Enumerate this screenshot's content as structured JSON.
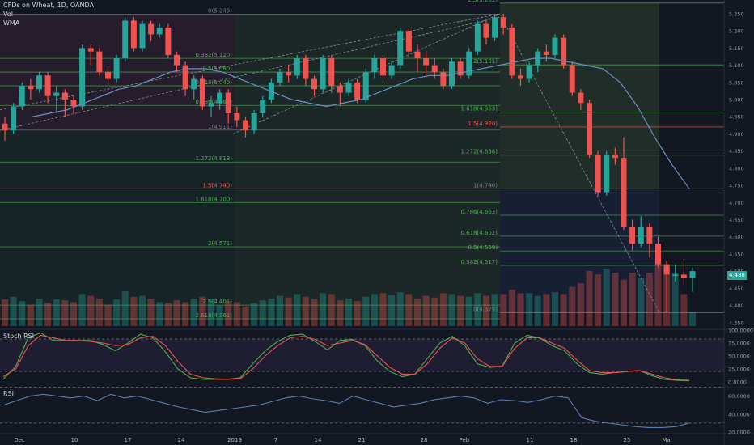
{
  "header": {
    "title": "CFDs on Wheat, 1D, OANDA",
    "vol_label": "Vol",
    "wma_label": "WMA"
  },
  "price_badge": "4.488",
  "colors": {
    "up": "#26a69a",
    "down": "#ef5350",
    "wma": "#6a8fc0",
    "background": "#131722"
  },
  "panes": {
    "stoch": {
      "title": "Stoch RSI",
      "ticks": [
        "100.0000",
        "75.0000",
        "50.0000",
        "25.0000",
        "0.0000"
      ]
    },
    "rsi": {
      "title": "RSI",
      "ticks": [
        "60.0000",
        "40.0000",
        "20.0000"
      ]
    }
  },
  "chart_data": {
    "type": "candlestick",
    "price_axis_ticks": [
      "5.250",
      "5.200",
      "5.150",
      "5.100",
      "5.050",
      "5.000",
      "4.950",
      "4.900",
      "4.850",
      "4.800",
      "4.750",
      "4.700",
      "4.650",
      "4.600",
      "4.550",
      "4.500",
      "4.450",
      "4.400",
      "4.350"
    ],
    "ylim": [
      4.34,
      5.29
    ],
    "date_labels": [
      "Dec",
      "10",
      "17",
      "24",
      "2019",
      "7",
      "14",
      "21",
      "28",
      "Feb",
      "11",
      "18",
      "25",
      "Mar"
    ],
    "fib_left": {
      "levels": [
        {
          "label": "0(5.249)",
          "value": 5.249
        },
        {
          "label": "0.382(5.120)",
          "value": 5.12
        },
        {
          "label": "0.5(5.080)",
          "value": 5.08
        },
        {
          "label": "0.618(5.040)",
          "value": 5.04
        },
        {
          "label": "0.786(4.983)",
          "value": 4.983
        },
        {
          "label": "1(4.911)",
          "value": 4.911
        },
        {
          "label": "1.272(4.818)",
          "value": 4.818
        },
        {
          "label": "1.5(4.740)",
          "value": 4.74
        },
        {
          "label": "1.618(4.700)",
          "value": 4.7
        },
        {
          "label": "2(4.571)",
          "value": 4.571
        },
        {
          "label": "2.5(4.401)",
          "value": 4.401
        },
        {
          "label": "2.618(4.361)",
          "value": 4.361
        }
      ]
    },
    "fib_right": {
      "levels": [
        {
          "label": "2.5(5.281)",
          "value": 5.281
        },
        {
          "label": "2(5.101)",
          "value": 5.101
        },
        {
          "label": "1.618(4.963)",
          "value": 4.963
        },
        {
          "label": "1.5(4.920)",
          "value": 4.92
        },
        {
          "label": "1.272(4.838)",
          "value": 4.838
        },
        {
          "label": "1(4.740)",
          "value": 4.74
        },
        {
          "label": "0.786(4.663)",
          "value": 4.663
        },
        {
          "label": "0.618(4.602)",
          "value": 4.602
        },
        {
          "label": "0.5(4.559)",
          "value": 4.559
        },
        {
          "label": "0.382(4.517)",
          "value": 4.517
        },
        {
          "label": "0(4.379)",
          "value": 4.379
        }
      ]
    },
    "candles": [
      [
        4.93,
        4.91,
        4.95,
        4.88
      ],
      [
        4.91,
        4.98,
        4.99,
        4.9
      ],
      [
        4.98,
        5.04,
        5.05,
        4.97
      ],
      [
        5.04,
        5.03,
        5.06,
        5.0
      ],
      [
        5.03,
        5.07,
        5.08,
        5.02
      ],
      [
        5.07,
        5.01,
        5.08,
        4.99
      ],
      [
        5.01,
        5.02,
        5.04,
        4.96
      ],
      [
        5.02,
        5.0,
        5.03,
        4.95
      ],
      [
        5.0,
        4.98,
        5.01,
        4.96
      ],
      [
        4.98,
        5.15,
        5.16,
        4.97
      ],
      [
        5.15,
        5.14,
        5.16,
        5.1
      ],
      [
        5.14,
        5.08,
        5.15,
        5.07
      ],
      [
        5.08,
        5.06,
        5.1,
        5.04
      ],
      [
        5.06,
        5.12,
        5.13,
        5.05
      ],
      [
        5.12,
        5.23,
        5.24,
        5.11
      ],
      [
        5.23,
        5.15,
        5.24,
        5.14
      ],
      [
        5.15,
        5.22,
        5.23,
        5.14
      ],
      [
        5.22,
        5.19,
        5.23,
        5.17
      ],
      [
        5.19,
        5.21,
        5.22,
        5.18
      ],
      [
        5.21,
        5.13,
        5.22,
        5.12
      ],
      [
        5.13,
        5.1,
        5.14,
        5.08
      ],
      [
        5.1,
        5.03,
        5.11,
        5.01
      ],
      [
        5.03,
        5.06,
        5.07,
        5.0
      ],
      [
        5.06,
        4.98,
        5.07,
        4.97
      ],
      [
        4.98,
        4.99,
        5.01,
        4.95
      ],
      [
        4.99,
        5.02,
        5.03,
        4.97
      ],
      [
        5.02,
        4.96,
        5.03,
        4.93
      ],
      [
        4.96,
        4.94,
        4.98,
        4.92
      ],
      [
        4.94,
        4.91,
        4.95,
        4.89
      ],
      [
        4.91,
        4.96,
        4.97,
        4.9
      ],
      [
        4.96,
        5.0,
        5.01,
        4.95
      ],
      [
        5.0,
        5.05,
        5.06,
        4.99
      ],
      [
        5.05,
        5.08,
        5.09,
        5.04
      ],
      [
        5.08,
        5.07,
        5.1,
        5.05
      ],
      [
        5.07,
        5.12,
        5.13,
        5.06
      ],
      [
        5.12,
        5.06,
        5.13,
        5.04
      ],
      [
        5.06,
        5.03,
        5.07,
        5.01
      ],
      [
        5.03,
        5.12,
        5.13,
        5.02
      ],
      [
        5.12,
        5.04,
        5.13,
        5.02
      ],
      [
        5.04,
        5.02,
        5.05,
        4.98
      ],
      [
        5.02,
        5.05,
        5.06,
        5.01
      ],
      [
        5.05,
        5.0,
        5.06,
        4.99
      ],
      [
        5.0,
        5.08,
        5.09,
        4.99
      ],
      [
        5.08,
        5.12,
        5.13,
        5.06
      ],
      [
        5.12,
        5.07,
        5.13,
        5.05
      ],
      [
        5.07,
        5.1,
        5.11,
        5.06
      ],
      [
        5.1,
        5.2,
        5.21,
        5.09
      ],
      [
        5.2,
        5.14,
        5.21,
        5.12
      ],
      [
        5.14,
        5.12,
        5.16,
        5.08
      ],
      [
        5.12,
        5.1,
        5.14,
        5.07
      ],
      [
        5.1,
        5.08,
        5.12,
        5.06
      ],
      [
        5.08,
        5.04,
        5.09,
        5.03
      ],
      [
        5.04,
        5.11,
        5.12,
        5.03
      ],
      [
        5.11,
        5.07,
        5.12,
        5.06
      ],
      [
        5.07,
        5.14,
        5.15,
        5.06
      ],
      [
        5.14,
        5.22,
        5.23,
        5.13
      ],
      [
        5.22,
        5.18,
        5.23,
        5.16
      ],
      [
        5.18,
        5.24,
        5.25,
        5.17
      ],
      [
        5.24,
        5.21,
        5.25,
        5.19
      ],
      [
        5.21,
        5.07,
        5.22,
        5.06
      ],
      [
        5.07,
        5.06,
        5.09,
        5.04
      ],
      [
        5.06,
        5.1,
        5.11,
        5.05
      ],
      [
        5.1,
        5.14,
        5.15,
        5.08
      ],
      [
        5.14,
        5.13,
        5.16,
        5.11
      ],
      [
        5.13,
        5.18,
        5.19,
        5.12
      ],
      [
        5.18,
        5.1,
        5.19,
        5.09
      ],
      [
        5.1,
        5.02,
        5.11,
        5.01
      ],
      [
        5.02,
        4.99,
        5.03,
        4.97
      ],
      [
        4.99,
        4.84,
        5.0,
        4.83
      ],
      [
        4.84,
        4.73,
        4.85,
        4.72
      ],
      [
        4.73,
        4.84,
        4.85,
        4.72
      ],
      [
        4.84,
        4.83,
        4.86,
        4.81
      ],
      [
        4.83,
        4.63,
        4.89,
        4.62
      ],
      [
        4.63,
        4.58,
        4.65,
        4.56
      ],
      [
        4.58,
        4.63,
        4.66,
        4.57
      ],
      [
        4.63,
        4.58,
        4.64,
        4.54
      ],
      [
        4.58,
        4.52,
        4.6,
        4.51
      ],
      [
        4.52,
        4.49,
        4.53,
        4.38
      ],
      [
        4.49,
        4.49,
        4.52,
        4.47
      ],
      [
        4.49,
        4.48,
        4.53,
        4.46
      ],
      [
        4.48,
        4.5,
        4.51,
        4.44
      ]
    ],
    "wma": [
      4.95,
      4.96,
      4.97,
      4.99,
      5.01,
      5.03,
      5.04,
      5.06,
      5.08,
      5.09,
      5.09,
      5.08,
      5.06,
      5.04,
      5.02,
      5.0,
      4.99,
      4.98,
      4.99,
      5.0,
      5.02,
      5.04,
      5.06,
      5.07,
      5.07,
      5.08,
      5.09,
      5.1,
      5.11,
      5.12,
      5.12,
      5.11,
      5.1,
      5.09,
      5.05,
      4.98,
      4.89,
      4.81,
      4.74
    ],
    "volume": [
      0.3,
      0.33,
      0.28,
      0.24,
      0.31,
      0.26,
      0.3,
      0.29,
      0.27,
      0.36,
      0.34,
      0.31,
      0.24,
      0.3,
      0.39,
      0.33,
      0.34,
      0.31,
      0.27,
      0.26,
      0.29,
      0.27,
      0.31,
      0.33,
      0.3,
      0.23,
      0.28,
      0.27,
      0.22,
      0.26,
      0.29,
      0.31,
      0.34,
      0.32,
      0.36,
      0.33,
      0.3,
      0.37,
      0.36,
      0.29,
      0.31,
      0.28,
      0.33,
      0.36,
      0.37,
      0.35,
      0.38,
      0.36,
      0.31,
      0.34,
      0.32,
      0.37,
      0.36,
      0.34,
      0.33,
      0.37,
      0.34,
      0.36,
      0.36,
      0.41,
      0.37,
      0.37,
      0.34,
      0.36,
      0.38,
      0.36,
      0.44,
      0.48,
      0.62,
      0.58,
      0.64,
      0.6,
      0.52,
      0.6,
      0.54,
      0.6,
      0.7,
      0.66,
      0.6,
      0.36,
      0.16
    ],
    "stoch_k": [
      5,
      30,
      85,
      95,
      80,
      80,
      80,
      80,
      72,
      60,
      75,
      92,
      85,
      58,
      25,
      8,
      5,
      5,
      5,
      8,
      35,
      60,
      78,
      90,
      92,
      78,
      62,
      80,
      82,
      70,
      40,
      20,
      10,
      15,
      45,
      75,
      88,
      70,
      35,
      28,
      30,
      75,
      90,
      85,
      70,
      60,
      35,
      18,
      15,
      18,
      20,
      22,
      12,
      5,
      3,
      2
    ],
    "stoch_d": [
      10,
      25,
      70,
      90,
      85,
      80,
      80,
      78,
      75,
      70,
      72,
      85,
      88,
      70,
      40,
      15,
      8,
      6,
      5,
      6,
      25,
      50,
      70,
      85,
      88,
      82,
      70,
      75,
      80,
      72,
      50,
      28,
      15,
      15,
      35,
      65,
      85,
      75,
      45,
      30,
      30,
      65,
      85,
      85,
      75,
      65,
      42,
      22,
      18,
      18,
      20,
      22,
      15,
      8,
      4,
      3
    ],
    "rsi": [
      50,
      55,
      60,
      62,
      60,
      58,
      60,
      55,
      62,
      58,
      60,
      56,
      52,
      48,
      45,
      42,
      44,
      46,
      48,
      50,
      54,
      58,
      60,
      57,
      55,
      52,
      60,
      56,
      52,
      48,
      50,
      52,
      56,
      58,
      60,
      58,
      52,
      56,
      55,
      53,
      56,
      60,
      58,
      36,
      32,
      30,
      28,
      26,
      25,
      25,
      26,
      30
    ]
  }
}
